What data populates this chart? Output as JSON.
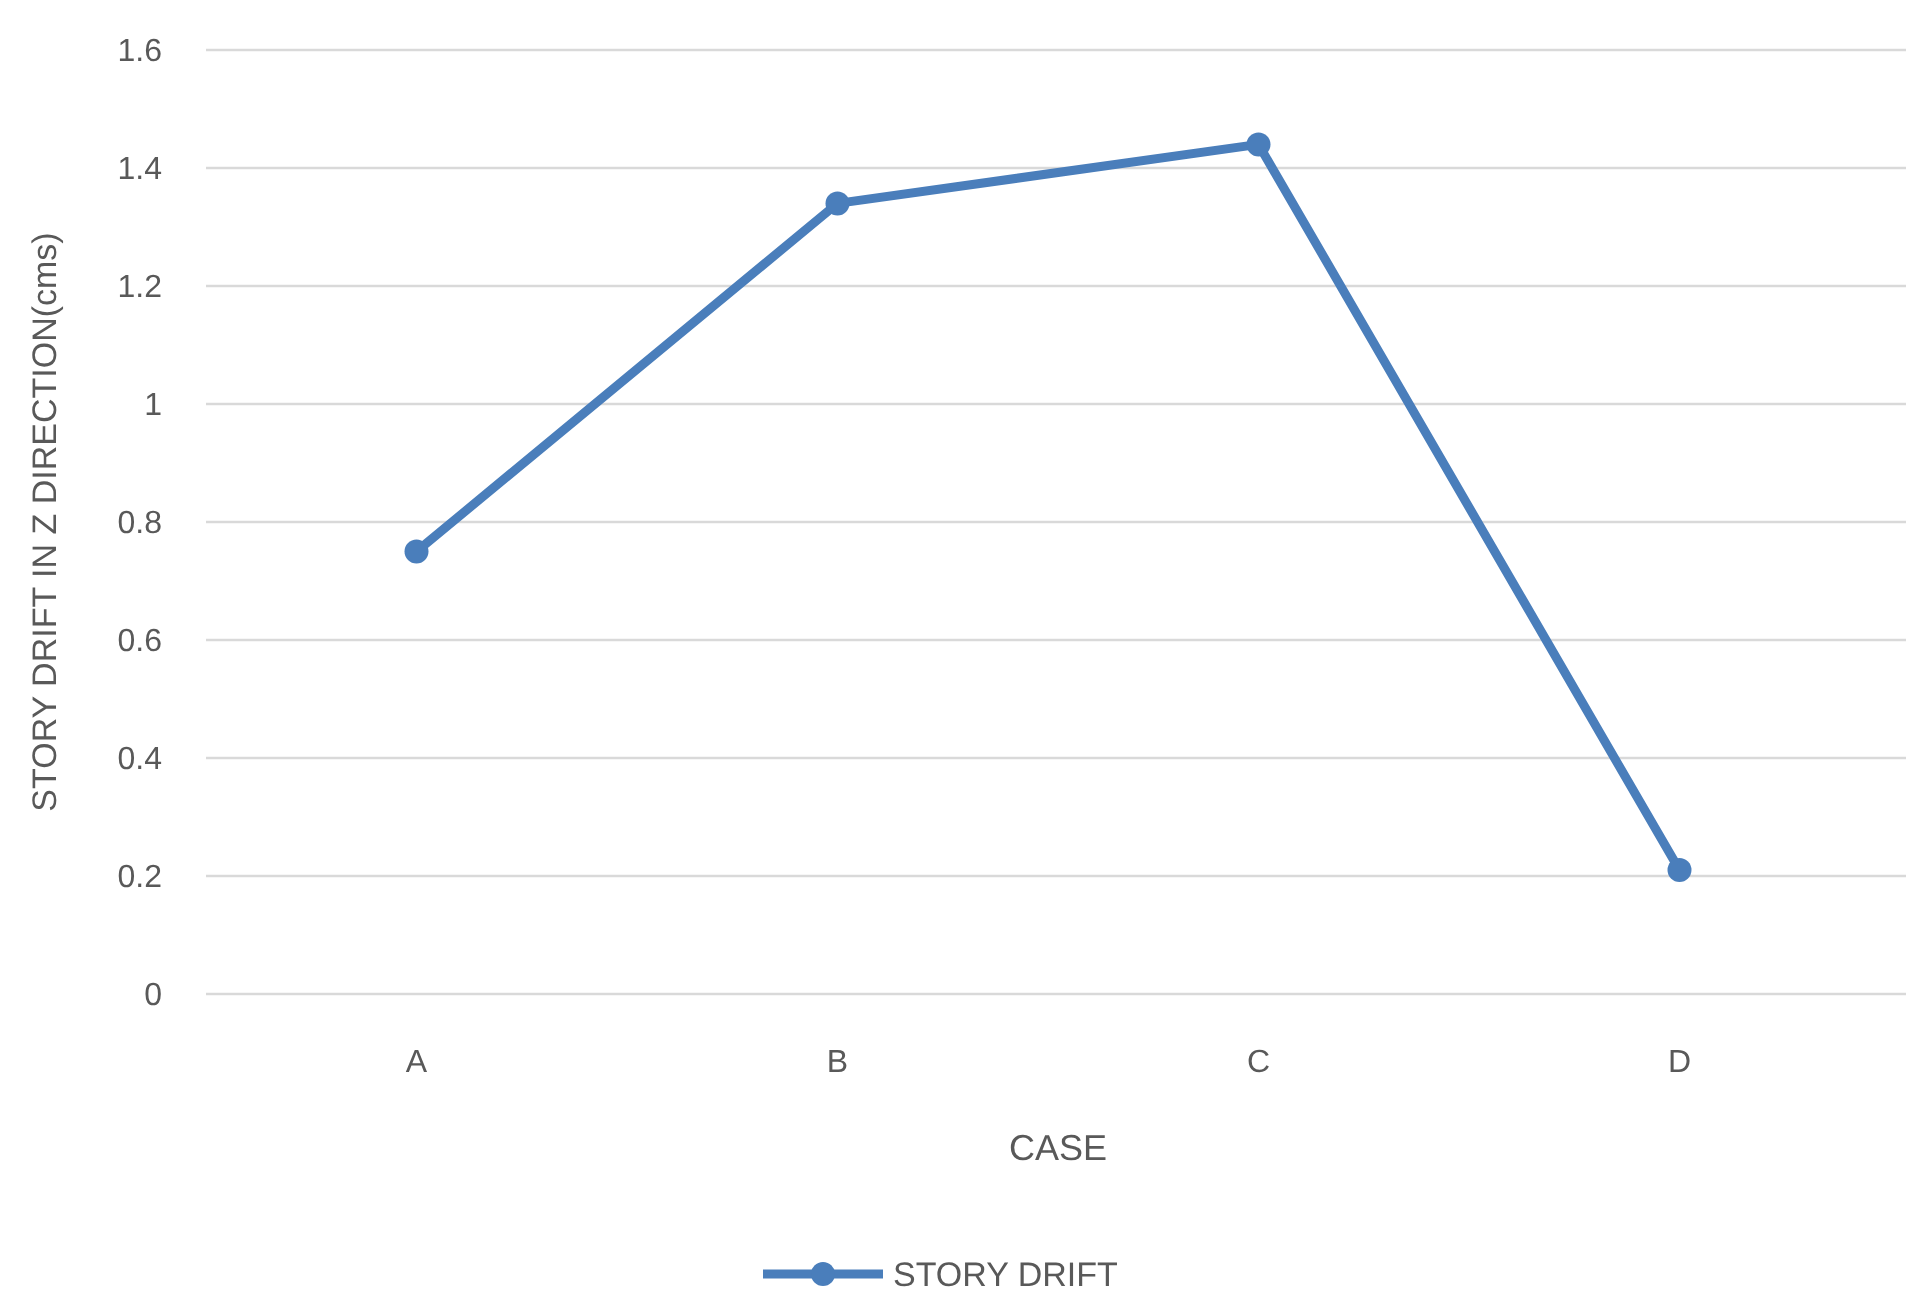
{
  "chart_data": {
    "type": "line",
    "xlabel": "CASE",
    "ylabel": "STORY DRIFT IN Z DIRECTION(cms)",
    "categories": [
      "A",
      "B",
      "C",
      "D"
    ],
    "series": [
      {
        "name": "STORY DRIFT",
        "color": "#4a7ebb",
        "values": [
          0.75,
          1.34,
          1.44,
          0.21
        ]
      }
    ],
    "ylim": [
      0,
      1.6
    ],
    "yticks": [
      0,
      {
        "value": 0.2,
        "label": "0.2"
      },
      {
        "value": 0.4,
        "label": "0.4"
      },
      {
        "value": 0.6,
        "label": "0.6"
      },
      {
        "value": 0.8,
        "label": "0.8"
      },
      1,
      {
        "value": 1.2,
        "label": "1.2"
      },
      {
        "value": 1.4,
        "label": "1.4"
      },
      {
        "value": 1.6,
        "label": "1.6"
      }
    ],
    "grid": "y",
    "legend": "bottom",
    "marker": "circle",
    "line_style": "solid"
  }
}
